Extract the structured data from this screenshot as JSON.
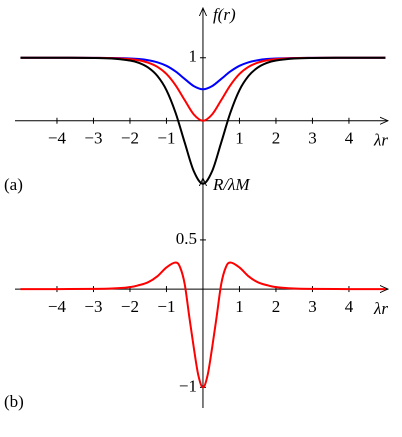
{
  "chart_data": [
    {
      "type": "line",
      "y_label": "f(r)",
      "x_label": "λr",
      "panel_label": "(a)",
      "x": [
        -5,
        -4,
        -3,
        -2.5,
        -2,
        -1.75,
        -1.5,
        -1.25,
        -1,
        -0.75,
        -0.5,
        -0.25,
        0,
        0.25,
        0.5,
        0.75,
        1,
        1.25,
        1.5,
        1.75,
        2,
        2.5,
        3,
        4,
        5
      ],
      "series": [
        {
          "color": "#0000ff",
          "values": [
            1,
            1,
            0.999,
            0.997,
            0.989,
            0.98,
            0.961,
            0.928,
            0.872,
            0.782,
            0.664,
            0.55,
            0.5,
            0.55,
            0.664,
            0.782,
            0.872,
            0.928,
            0.961,
            0.98,
            0.989,
            0.997,
            0.999,
            1,
            1
          ]
        },
        {
          "color": "#ff0000",
          "values": [
            1,
            1,
            0.998,
            0.994,
            0.978,
            0.959,
            0.922,
            0.856,
            0.743,
            0.563,
            0.327,
            0.099,
            0,
            0.099,
            0.327,
            0.563,
            0.743,
            0.856,
            0.922,
            0.959,
            0.978,
            0.994,
            0.998,
            1,
            1
          ]
        },
        {
          "color": "#000000",
          "values": [
            1,
            1,
            0.997,
            0.988,
            0.956,
            0.918,
            0.844,
            0.712,
            0.486,
            0.126,
            -0.346,
            -0.802,
            -1,
            -0.802,
            -0.346,
            0.126,
            0.486,
            0.712,
            0.844,
            0.918,
            0.956,
            0.988,
            0.997,
            1,
            1
          ]
        }
      ],
      "xlim": [
        -5.15,
        5.07
      ],
      "ylim": [
        -1.02,
        1.79
      ],
      "xticks": [
        {
          "value": -4,
          "label": "−4"
        },
        {
          "value": -3,
          "label": "−3"
        },
        {
          "value": -2,
          "label": "−2"
        },
        {
          "value": -1,
          "label": "−1"
        },
        1,
        2,
        3,
        4
      ],
      "yticks": [
        1
      ],
      "grid": false
    },
    {
      "type": "line",
      "y_label": "R/λM",
      "x_label": "λr",
      "panel_label": "(b)",
      "x": [
        -5,
        -4,
        -3,
        -2.5,
        -2,
        -1.75,
        -1.5,
        -1.25,
        -1,
        -0.75,
        -0.625,
        -0.5,
        -0.375,
        -0.25,
        -0.125,
        0,
        0.125,
        0.25,
        0.375,
        0.5,
        0.625,
        0.75,
        1,
        1.25,
        1.5,
        1.75,
        2,
        2.5,
        3,
        4,
        5
      ],
      "series": [
        {
          "color": "#ff0000",
          "values": [
            0,
            0,
            0.002,
            0.006,
            0.02,
            0.04,
            0.07,
            0.13,
            0.22,
            0.27,
            0.22,
            0.05,
            -0.28,
            -0.6,
            -0.88,
            -1,
            -0.88,
            -0.6,
            -0.28,
            0.05,
            0.22,
            0.27,
            0.22,
            0.13,
            0.07,
            0.04,
            0.02,
            0.006,
            0.002,
            0,
            0
          ]
        }
      ],
      "xlim": [
        -5.15,
        5.07
      ],
      "ylim": [
        -1.21,
        1.13
      ],
      "xticks": [
        {
          "value": -4,
          "label": "−4"
        },
        {
          "value": -3,
          "label": "−3"
        },
        {
          "value": -2,
          "label": "−2"
        },
        {
          "value": -1,
          "label": "−1"
        },
        1,
        2,
        3,
        4
      ],
      "yticks": [
        0.5,
        {
          "value": -1,
          "label": "−1"
        }
      ],
      "grid": false
    }
  ]
}
